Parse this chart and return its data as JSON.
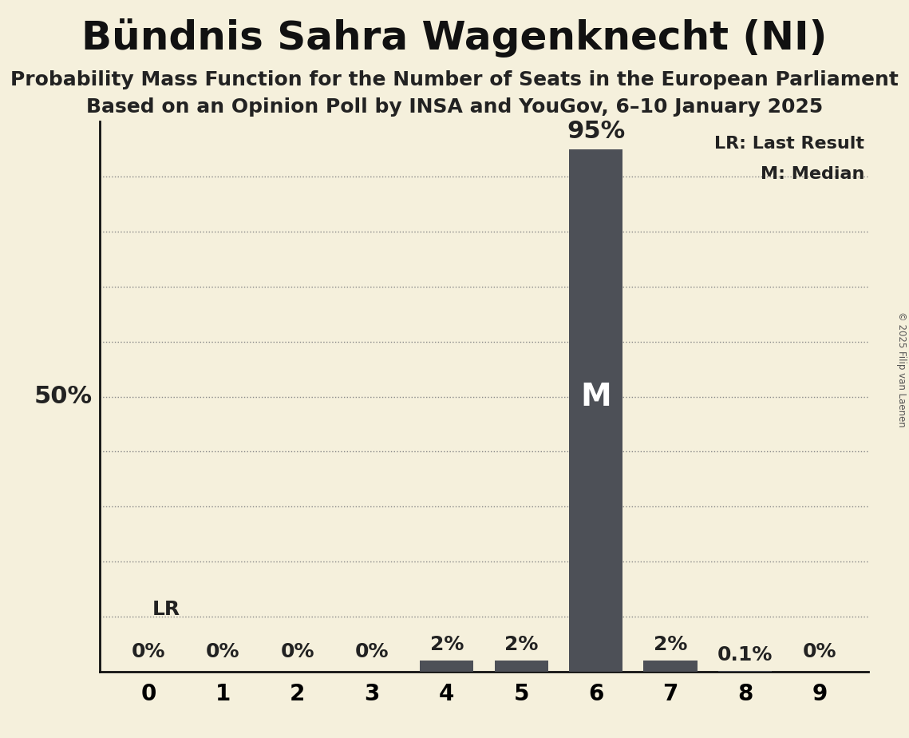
{
  "title": "Bündnis Sahra Wagenknecht (NI)",
  "subtitle1": "Probability Mass Function for the Number of Seats in the European Parliament",
  "subtitle2": "Based on an Opinion Poll by INSA and YouGov, 6–10 January 2025",
  "copyright": "© 2025 Filip van Laenen",
  "categories": [
    0,
    1,
    2,
    3,
    4,
    5,
    6,
    7,
    8,
    9
  ],
  "values": [
    0.0,
    0.0,
    0.0,
    0.0,
    2.0,
    2.0,
    95.0,
    2.0,
    0.1,
    0.0
  ],
  "bar_color": "#4d5057",
  "background_color": "#f5f0dc",
  "bar_labels": [
    "0%",
    "0%",
    "0%",
    "0%",
    "2%",
    "2%",
    "95%",
    "2%",
    "0.1%",
    "0%"
  ],
  "median_seat": 6,
  "lr_seat": 0,
  "legend_text1": "LR: Last Result",
  "legend_text2": "M: Median",
  "ylim": [
    0,
    100
  ],
  "grid_yticks": [
    10,
    20,
    30,
    40,
    50,
    60,
    70,
    80,
    90
  ],
  "grid_color": "#888888",
  "ylabel_50_label": "50%",
  "title_fontsize": 36,
  "subtitle_fontsize": 18,
  "bar_label_fontsize": 18,
  "tick_fontsize": 20
}
